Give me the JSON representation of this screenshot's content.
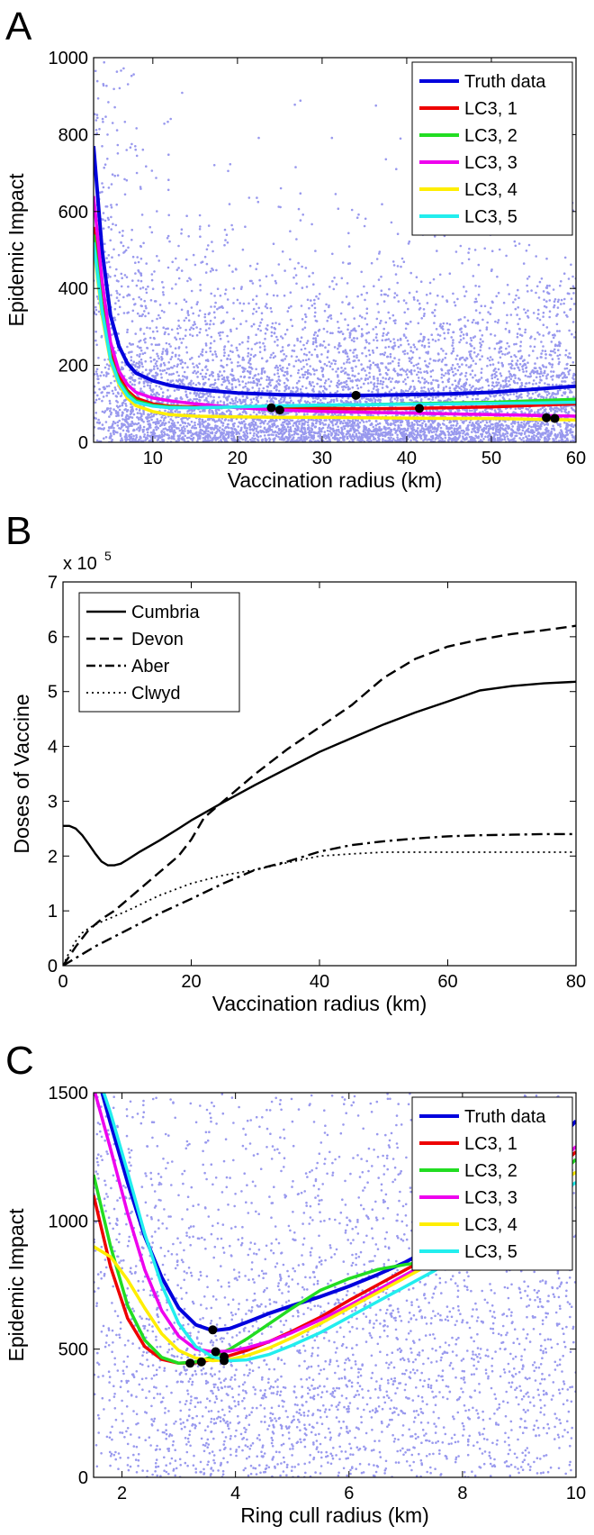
{
  "chart_data": [
    {
      "panel_label": "A",
      "type": "scatter",
      "xlabel": "Vaccination radius (km)",
      "ylabel": "Epidemic Impact",
      "xlim": [
        3,
        60
      ],
      "ylim": [
        0,
        1000
      ],
      "xticks": [
        10,
        20,
        30,
        40,
        50,
        60
      ],
      "yticks": [
        0,
        200,
        400,
        600,
        800,
        1000
      ],
      "legend_position": "top-right",
      "scatter_color": "#9999ee",
      "series": [
        {
          "name": "Truth data",
          "color": "#0000dd",
          "x": [
            3,
            4,
            5,
            6,
            7,
            8,
            10,
            12,
            15,
            20,
            25,
            30,
            35,
            40,
            45,
            50,
            55,
            60
          ],
          "y": [
            770,
            500,
            330,
            250,
            205,
            180,
            160,
            148,
            138,
            128,
            124,
            122,
            122,
            124,
            126,
            130,
            138,
            146
          ]
        },
        {
          "name": "LC3, 1",
          "color": "#ee0000",
          "x": [
            3,
            4,
            5,
            6,
            7,
            8,
            10,
            12,
            15,
            20,
            25,
            30,
            35,
            40,
            45,
            50,
            55,
            60
          ],
          "y": [
            560,
            360,
            230,
            170,
            135,
            115,
            100,
            94,
            92,
            92,
            90,
            88,
            87,
            88,
            90,
            92,
            96,
            100
          ]
        },
        {
          "name": "LC3, 2",
          "color": "#22dd22",
          "x": [
            3,
            4,
            5,
            6,
            7,
            8,
            10,
            12,
            15,
            20,
            25,
            30,
            35,
            40,
            45,
            50,
            55,
            60
          ],
          "y": [
            540,
            350,
            220,
            160,
            128,
            108,
            96,
            92,
            90,
            92,
            94,
            96,
            98,
            100,
            102,
            104,
            108,
            112
          ]
        },
        {
          "name": "LC3, 3",
          "color": "#ee00ee",
          "x": [
            3,
            4,
            5,
            6,
            7,
            8,
            10,
            12,
            15,
            20,
            25,
            30,
            35,
            40,
            45,
            50,
            55,
            60
          ],
          "y": [
            640,
            420,
            260,
            185,
            150,
            130,
            115,
            108,
            100,
            90,
            84,
            80,
            78,
            76,
            74,
            72,
            70,
            68
          ]
        },
        {
          "name": "LC3, 4",
          "color": "#ffee00",
          "x": [
            3,
            4,
            5,
            6,
            7,
            8,
            10,
            12,
            15,
            20,
            25,
            30,
            35,
            40,
            45,
            50,
            55,
            60
          ],
          "y": [
            510,
            330,
            210,
            150,
            115,
            95,
            80,
            72,
            68,
            66,
            65,
            65,
            64,
            63,
            62,
            62,
            60,
            58
          ]
        },
        {
          "name": "LC3, 5",
          "color": "#22eeee",
          "x": [
            3,
            4,
            5,
            6,
            7,
            8,
            10,
            12,
            15,
            20,
            25,
            30,
            35,
            40,
            45,
            50,
            55,
            60
          ],
          "y": [
            520,
            340,
            215,
            155,
            122,
            104,
            94,
            90,
            90,
            92,
            95,
            97,
            98,
            99,
            100,
            101,
            102,
            104
          ]
        }
      ],
      "minima": [
        {
          "x": 24,
          "y": 90
        },
        {
          "x": 25,
          "y": 84
        },
        {
          "x": 34,
          "y": 122
        },
        {
          "x": 41.5,
          "y": 88
        },
        {
          "x": 56.5,
          "y": 64
        },
        {
          "x": 57.5,
          "y": 62
        }
      ]
    },
    {
      "panel_label": "B",
      "type": "line",
      "xlabel": "Vaccination radius (km)",
      "ylabel": "Doses of Vaccine",
      "multiplier_label": "x 10",
      "multiplier_exponent": "5",
      "xlim": [
        0,
        80
      ],
      "ylim": [
        0,
        7
      ],
      "xticks": [
        0,
        20,
        40,
        60,
        80
      ],
      "yticks": [
        0,
        1,
        2,
        3,
        4,
        5,
        6,
        7
      ],
      "legend_position": "top-left",
      "series": [
        {
          "name": "Cumbria",
          "dash": "solid",
          "x": [
            0,
            1,
            2,
            3,
            4,
            5,
            6,
            7,
            8,
            9,
            10,
            12,
            15,
            18,
            20,
            25,
            30,
            35,
            40,
            45,
            50,
            55,
            60,
            65,
            70,
            75,
            80
          ],
          "y": [
            2.55,
            2.55,
            2.5,
            2.38,
            2.22,
            2.05,
            1.9,
            1.83,
            1.83,
            1.86,
            1.93,
            2.08,
            2.28,
            2.5,
            2.65,
            2.98,
            3.3,
            3.6,
            3.9,
            4.15,
            4.4,
            4.62,
            4.82,
            5.02,
            5.1,
            5.15,
            5.18
          ]
        },
        {
          "name": "Devon",
          "dash": "dashed",
          "x": [
            0,
            2,
            4,
            6,
            8,
            10,
            12,
            15,
            18,
            20,
            22,
            25,
            28,
            30,
            35,
            40,
            45,
            50,
            55,
            60,
            65,
            70,
            75,
            80
          ],
          "y": [
            0,
            0.35,
            0.65,
            0.85,
            1.0,
            1.2,
            1.4,
            1.7,
            2.0,
            2.3,
            2.7,
            3.0,
            3.3,
            3.5,
            3.95,
            4.35,
            4.75,
            5.25,
            5.6,
            5.82,
            5.95,
            6.05,
            6.12,
            6.2
          ]
        },
        {
          "name": "Aber",
          "dash": "dashdot",
          "x": [
            0,
            5,
            10,
            15,
            20,
            25,
            30,
            35,
            40,
            45,
            50,
            55,
            60,
            65,
            70,
            75,
            80
          ],
          "y": [
            0,
            0.35,
            0.65,
            0.95,
            1.22,
            1.5,
            1.75,
            1.9,
            2.08,
            2.2,
            2.27,
            2.32,
            2.36,
            2.38,
            2.39,
            2.4,
            2.4
          ]
        },
        {
          "name": "Clwyd",
          "dash": "dotted",
          "x": [
            0,
            1,
            2,
            3,
            4,
            5,
            7,
            10,
            15,
            20,
            25,
            30,
            35,
            40,
            45,
            50,
            55,
            60,
            65,
            70,
            75,
            80
          ],
          "y": [
            0,
            0.25,
            0.45,
            0.6,
            0.68,
            0.75,
            0.85,
            1.0,
            1.28,
            1.5,
            1.65,
            1.75,
            1.88,
            2.0,
            2.04,
            2.07,
            2.07,
            2.07,
            2.07,
            2.07,
            2.07,
            2.07
          ]
        }
      ]
    },
    {
      "panel_label": "C",
      "type": "scatter",
      "xlabel": "Ring cull radius (km)",
      "ylabel": "Epidemic Impact",
      "xlim": [
        1.5,
        10
      ],
      "ylim": [
        0,
        1500
      ],
      "xticks": [
        2,
        4,
        6,
        8,
        10
      ],
      "yticks": [
        0,
        500,
        1000,
        1500
      ],
      "legend_position": "top-right",
      "scatter_color": "#9999ee",
      "series": [
        {
          "name": "Truth data",
          "color": "#0000dd",
          "x": [
            1.5,
            1.8,
            2.1,
            2.4,
            2.7,
            3.0,
            3.3,
            3.6,
            3.9,
            4.2,
            4.6,
            5.0,
            5.5,
            6.0,
            6.5,
            7.0,
            7.5,
            8.0,
            8.5,
            9.0,
            9.5,
            10.0
          ],
          "y": [
            1620,
            1380,
            1150,
            940,
            780,
            660,
            595,
            572,
            580,
            605,
            640,
            670,
            705,
            745,
            790,
            840,
            900,
            980,
            1070,
            1160,
            1270,
            1390
          ]
        },
        {
          "name": "LC3, 1",
          "color": "#ee0000",
          "x": [
            1.5,
            1.8,
            2.1,
            2.4,
            2.7,
            3.0,
            3.3,
            3.6,
            3.9,
            4.2,
            4.6,
            5.0,
            5.5,
            6.0,
            6.5,
            7.0,
            7.5,
            8.0,
            8.5,
            9.0,
            9.5,
            10.0
          ],
          "y": [
            1100,
            820,
            620,
            510,
            460,
            445,
            447,
            460,
            475,
            495,
            530,
            570,
            625,
            690,
            750,
            810,
            870,
            930,
            1000,
            1080,
            1170,
            1270
          ]
        },
        {
          "name": "LC3, 2",
          "color": "#22dd22",
          "x": [
            1.5,
            1.8,
            2.1,
            2.4,
            2.7,
            3.0,
            3.3,
            3.6,
            3.9,
            4.2,
            4.6,
            5.0,
            5.5,
            6.0,
            6.5,
            7.0,
            7.5,
            8.0,
            8.5,
            9.0,
            9.5,
            10.0
          ],
          "y": [
            1180,
            900,
            670,
            535,
            468,
            445,
            450,
            470,
            500,
            540,
            600,
            660,
            730,
            775,
            810,
            830,
            845,
            880,
            960,
            1050,
            1140,
            1240
          ]
        },
        {
          "name": "LC3, 3",
          "color": "#ee00ee",
          "x": [
            1.5,
            1.8,
            2.1,
            2.4,
            2.7,
            3.0,
            3.3,
            3.6,
            3.9,
            4.2,
            4.6,
            5.0,
            5.5,
            6.0,
            6.5,
            7.0,
            7.5,
            8.0,
            8.5,
            9.0,
            9.5,
            10.0
          ],
          "y": [
            1520,
            1280,
            1030,
            810,
            650,
            550,
            500,
            490,
            492,
            505,
            530,
            565,
            615,
            670,
            730,
            790,
            850,
            920,
            1000,
            1090,
            1190,
            1290
          ]
        },
        {
          "name": "LC3, 4",
          "color": "#ffee00",
          "x": [
            1.5,
            1.8,
            2.1,
            2.4,
            2.7,
            3.0,
            3.3,
            3.6,
            3.9,
            4.2,
            4.6,
            5.0,
            5.5,
            6.0,
            6.5,
            7.0,
            7.5,
            8.0,
            8.5,
            9.0,
            9.5,
            10.0
          ],
          "y": [
            900,
            860,
            770,
            660,
            560,
            495,
            465,
            455,
            460,
            475,
            505,
            545,
            600,
            660,
            720,
            780,
            840,
            900,
            970,
            1050,
            1120,
            1190
          ]
        },
        {
          "name": "LC3, 5",
          "color": "#22eeee",
          "x": [
            1.5,
            1.8,
            2.1,
            2.4,
            2.7,
            3.0,
            3.3,
            3.6,
            3.9,
            4.2,
            4.6,
            5.0,
            5.5,
            6.0,
            6.5,
            7.0,
            7.5,
            8.0,
            8.5,
            9.0,
            9.5,
            10.0
          ],
          "y": [
            1620,
            1420,
            1190,
            950,
            750,
            600,
            510,
            470,
            455,
            458,
            480,
            515,
            565,
            625,
            685,
            745,
            805,
            870,
            940,
            1010,
            1080,
            1150
          ]
        }
      ],
      "minima": [
        {
          "x": 3.2,
          "y": 445
        },
        {
          "x": 3.4,
          "y": 450
        },
        {
          "x": 3.6,
          "y": 575
        },
        {
          "x": 3.65,
          "y": 490
        },
        {
          "x": 3.8,
          "y": 470
        },
        {
          "x": 3.8,
          "y": 455
        }
      ]
    }
  ]
}
